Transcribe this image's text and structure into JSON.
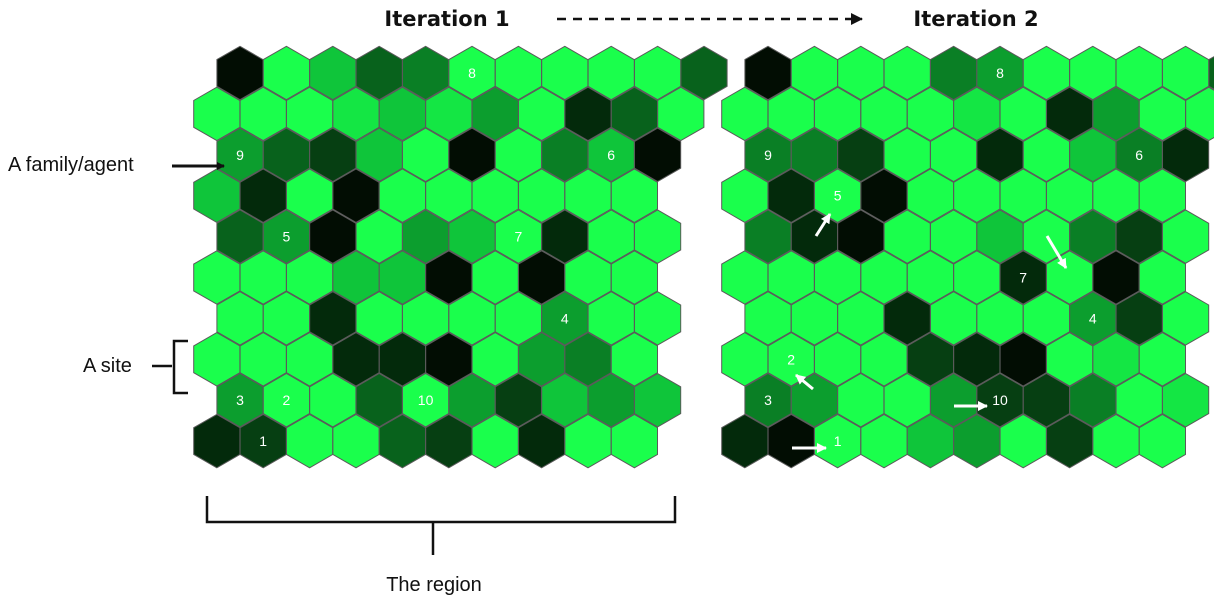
{
  "titles": {
    "iteration1": "Iteration 1",
    "iteration2": "Iteration 2"
  },
  "annotations": {
    "agent": "A family/agent",
    "site": "A site",
    "region": "The region"
  },
  "colors": {
    "background": "#ffffff",
    "hex_stroke": "#5a5a5a",
    "agent_text": "#ffffff",
    "annotation_ink": "#111111",
    "palette": [
      "#1aff4c",
      "#14e644",
      "#0fc53a",
      "#0c9e2e",
      "#0a7f25",
      "#08621c",
      "#063f12",
      "#032a0b",
      "#020d03"
    ]
  },
  "grids": [
    {
      "name": "iteration-1",
      "shades": [
        "8 0 2 5 4 0 0 0 0 0 5",
        "0 0 0 1 2 1 3 0 7 5 0",
        "3 5 6 2 0 8 0 4 2 8",
        "2 7 0 8 0 0 0 0 0 0",
        "5 3 8 0 3 2 0 7 0 0",
        "0 0 0 2 2 8 0 8 0 0",
        "0 0 7 0 0 0 0 3 0 0",
        "0 0 0 7 7 8 0 3 4 0",
        "3 0 0 5 0 3 6 2 3 2",
        "7 6 0 0 5 6 0 7 0 0"
      ],
      "agents": [
        {
          "label": "1",
          "cell": "9,1"
        },
        {
          "label": "2",
          "cell": "8,1"
        },
        {
          "label": "3",
          "cell": "8,0"
        },
        {
          "label": "4",
          "cell": "6,7"
        },
        {
          "label": "5",
          "cell": "4,1"
        },
        {
          "label": "6",
          "cell": "2,8"
        },
        {
          "label": "7",
          "cell": "4,6"
        },
        {
          "label": "8",
          "cell": "0,5"
        },
        {
          "label": "9",
          "cell": "2,0"
        },
        {
          "label": "10",
          "cell": "8,4"
        }
      ]
    },
    {
      "name": "iteration-2",
      "shades": [
        "8 0 0 0 4 3 0 0 0 0 5",
        "0 0 0 0 0 1 0 7 3 0 0",
        "4 4 6 0 0 7 0 2 4 7",
        "0 7 0 8 0 0 0 0 0 0",
        "4 7 8 0 0 2 0 4 6 0",
        "0 0 0 0 0 0 7 0 8 0",
        "0 0 0 7 0 0 0 3 6 0",
        "0 0 0 0 6 7 8 0 1 0",
        "4 3 0 0 3 6 6 4 0 1",
        "7 8 0 0 2 3 0 6 0 0"
      ],
      "agents": [
        {
          "label": "1",
          "cell": "9,2"
        },
        {
          "label": "2",
          "cell": "7,1"
        },
        {
          "label": "3",
          "cell": "8,0"
        },
        {
          "label": "4",
          "cell": "6,7"
        },
        {
          "label": "5",
          "cell": "3,2"
        },
        {
          "label": "6",
          "cell": "2,8"
        },
        {
          "label": "7",
          "cell": "5,6"
        },
        {
          "label": "8",
          "cell": "0,5"
        },
        {
          "label": "9",
          "cell": "2,0"
        },
        {
          "label": "10",
          "cell": "8,5"
        }
      ]
    }
  ]
}
